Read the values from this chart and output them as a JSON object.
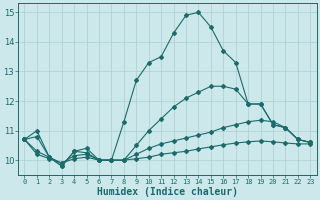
{
  "xlabel": "Humidex (Indice chaleur)",
  "xlim": [
    -0.5,
    23.5
  ],
  "ylim": [
    9.5,
    15.3
  ],
  "yticks": [
    10,
    11,
    12,
    13,
    14,
    15
  ],
  "xticks": [
    0,
    1,
    2,
    3,
    4,
    5,
    6,
    7,
    8,
    9,
    10,
    11,
    12,
    13,
    14,
    15,
    16,
    17,
    18,
    19,
    20,
    21,
    22,
    23
  ],
  "bg_color": "#cce8eb",
  "grid_color": "#aacfd4",
  "line_color": "#1a6b6b",
  "series": [
    [
      10.7,
      11.0,
      10.1,
      9.8,
      10.3,
      10.4,
      10.0,
      10.0,
      11.3,
      12.7,
      13.3,
      13.5,
      14.3,
      14.9,
      15.0,
      14.5,
      13.7,
      13.3,
      11.9,
      11.9,
      11.2,
      11.1,
      10.7,
      10.6
    ],
    [
      10.7,
      10.8,
      10.1,
      9.8,
      10.3,
      10.25,
      10.0,
      10.0,
      10.0,
      10.5,
      11.0,
      11.4,
      11.8,
      12.1,
      12.3,
      12.5,
      12.5,
      12.4,
      11.9,
      11.9,
      11.2,
      11.1,
      10.7,
      10.6
    ],
    [
      10.7,
      10.3,
      10.1,
      9.9,
      10.15,
      10.2,
      10.0,
      10.0,
      10.0,
      10.2,
      10.4,
      10.55,
      10.65,
      10.75,
      10.85,
      10.95,
      11.1,
      11.2,
      11.3,
      11.35,
      11.3,
      11.1,
      10.7,
      10.6
    ],
    [
      10.7,
      10.2,
      10.05,
      9.9,
      10.05,
      10.1,
      10.0,
      10.0,
      10.0,
      10.05,
      10.1,
      10.2,
      10.25,
      10.3,
      10.38,
      10.45,
      10.52,
      10.58,
      10.62,
      10.65,
      10.62,
      10.58,
      10.55,
      10.55
    ]
  ],
  "xlabel_fontsize": 7,
  "xtick_fontsize": 5,
  "ytick_fontsize": 6
}
